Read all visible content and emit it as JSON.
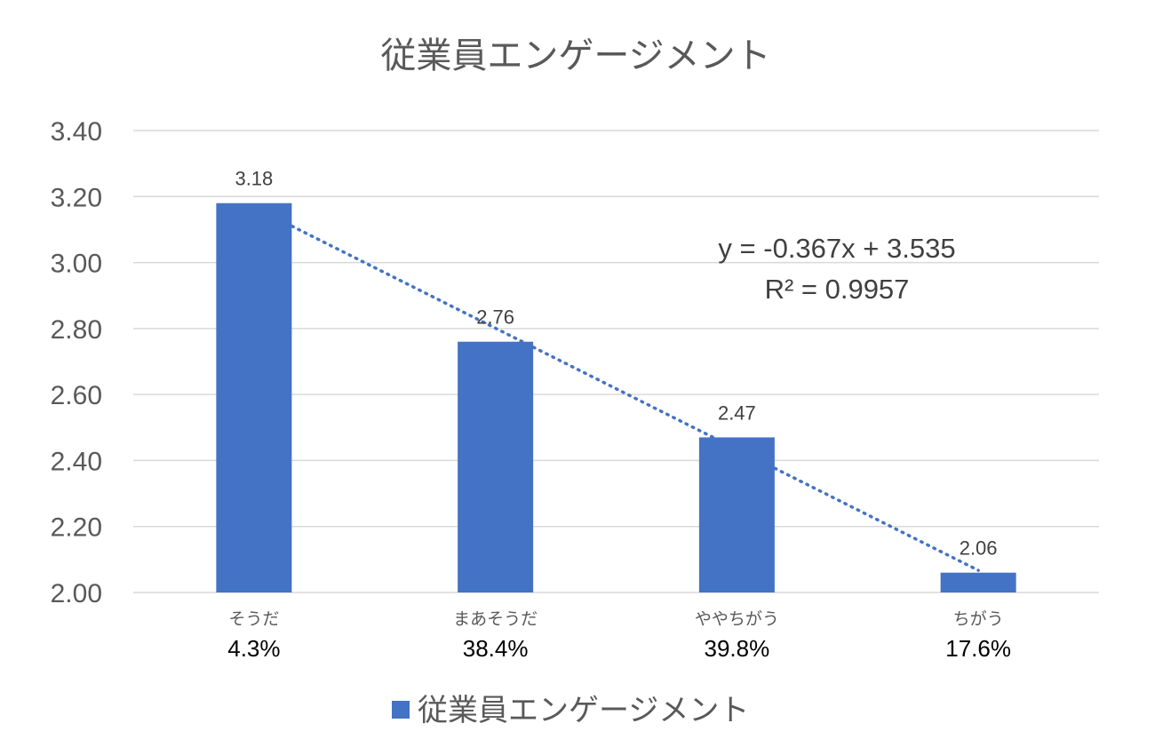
{
  "chart_data": {
    "type": "bar",
    "title": "従業員エンゲージメント",
    "categories": [
      "そうだ",
      "まあそうだ",
      "ややちがう",
      "ちがう"
    ],
    "category_shares": [
      "4.3%",
      "38.4%",
      "39.8%",
      "17.6%"
    ],
    "series": [
      {
        "name": "従業員エンゲージメント",
        "values": [
          3.18,
          2.76,
          2.47,
          2.06
        ],
        "color": "#4472C4"
      }
    ],
    "data_labels": [
      "3.18",
      "2.76",
      "2.47",
      "2.06"
    ],
    "ylim": [
      2.0,
      3.4
    ],
    "yticks": [
      2.0,
      2.2,
      2.4,
      2.6,
      2.8,
      3.0,
      3.2,
      3.4
    ],
    "ytick_labels": [
      "2.00",
      "2.20",
      "2.40",
      "2.60",
      "2.80",
      "3.00",
      "3.20",
      "3.40"
    ],
    "grid": true,
    "legend_position": "bottom",
    "trendline": {
      "type": "linear",
      "slope": -0.367,
      "intercept": 3.535,
      "equation": "y = -0.367x + 3.535",
      "r_squared": "R² = 0.9957",
      "color": "#4472C4",
      "style": "dotted"
    }
  }
}
